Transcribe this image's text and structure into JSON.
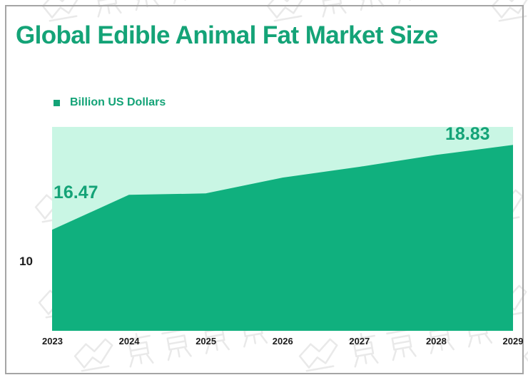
{
  "title": "Global Edible Animal Fat Market Size",
  "legend": {
    "label": "Billion US Dollars"
  },
  "y_axis": {
    "tick_label": "10"
  },
  "point_labels": {
    "first": "16.47",
    "last": "18.83"
  },
  "watermark": {
    "text": "贝哲斯咨询"
  },
  "colors": {
    "accent_green": "#14a377",
    "area_fill": "#10b07e",
    "plot_background": "#c9f6e4",
    "axis_text": "#1b1b1b",
    "frame_border": "#a5a5a5",
    "watermark": "#e9e9e9",
    "page_background": "#ffffff"
  },
  "chart_data": {
    "type": "area",
    "title": "Global Edible Animal Fat Market Size",
    "unit": "Billion US Dollars",
    "categories": [
      "2023",
      "2024",
      "2025",
      "2026",
      "2027",
      "2028",
      "2029"
    ],
    "series": [
      {
        "name": "Billion US Dollars",
        "values": [
          16.47,
          17.44,
          17.48,
          17.92,
          18.22,
          18.55,
          18.83
        ]
      }
    ],
    "labeled_values": {
      "2023": 16.47,
      "2029": 18.83
    },
    "y_tick_labels": [
      "10"
    ],
    "legend_position": "top-left",
    "grid": false,
    "xlabel": "",
    "ylabel": "Billion US Dollars"
  }
}
